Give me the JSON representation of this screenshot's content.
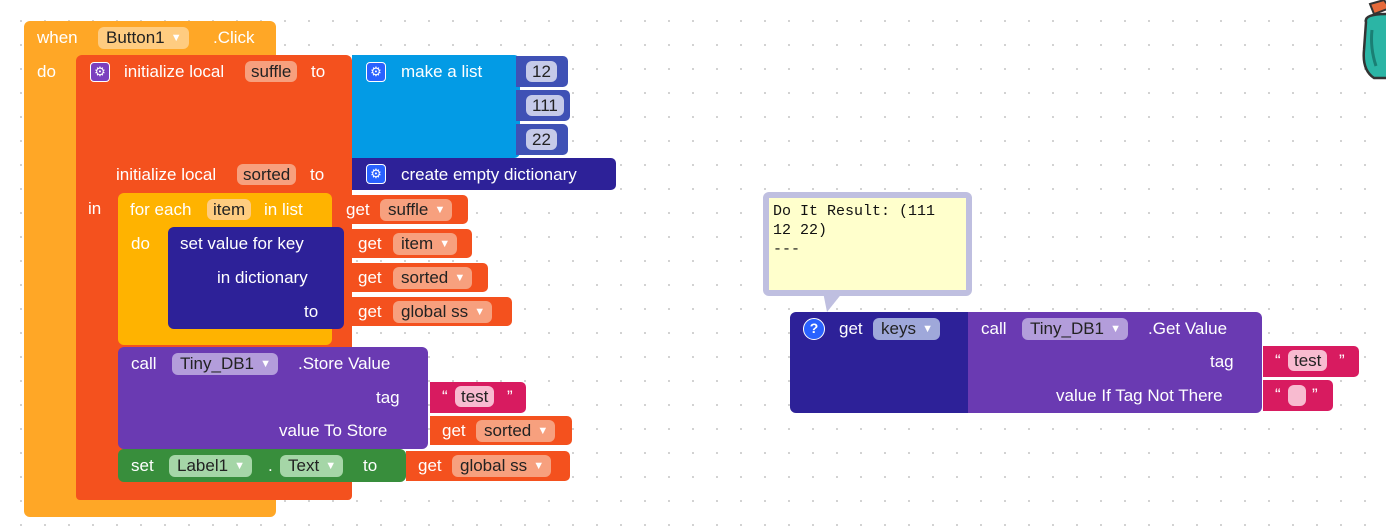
{
  "event": {
    "when": "when",
    "component": "Button1",
    "event_name": ".Click",
    "do": "do"
  },
  "init_suffle": {
    "label": "initialize local",
    "var": "suffle",
    "to": "to"
  },
  "make_list": {
    "label": "make a list",
    "items": [
      "12",
      "111",
      "22"
    ]
  },
  "init_sorted": {
    "label": "initialize local",
    "var": "sorted",
    "to": "to"
  },
  "dict_block": {
    "label": "create empty dictionary"
  },
  "in_label": "in",
  "for_each": {
    "label1": "for each",
    "var": "item",
    "label2": "in list",
    "do": "do"
  },
  "get_suffle": {
    "get": "get",
    "var": "suffle"
  },
  "set_value": {
    "label": "set value for key",
    "in_dict": "in dictionary",
    "to": "to"
  },
  "get_item": {
    "get": "get",
    "var": "item"
  },
  "get_sorted1": {
    "get": "get",
    "var": "sorted"
  },
  "get_global1": {
    "get": "get",
    "var": "global ss"
  },
  "store": {
    "call": "call",
    "component": "Tiny_DB1",
    "method": ".Store Value",
    "tag": "tag",
    "value": "value To Store"
  },
  "str_test1": {
    "open": "“",
    "text": "test",
    "close": "”"
  },
  "get_sorted2": {
    "get": "get",
    "var": "sorted"
  },
  "set_label": {
    "set": "set",
    "component": "Label1",
    "dot": ".",
    "prop": "Text",
    "to": "to"
  },
  "get_global2": {
    "get": "get",
    "var": "global ss"
  },
  "popup": {
    "text": "Do It Result: (111\n12 22)\n---"
  },
  "get_keys": {
    "get": "get",
    "var": "keys",
    "help": "?"
  },
  "get_value": {
    "call": "call",
    "component": "Tiny_DB1",
    "method": ".Get Value",
    "tag": "tag",
    "fallback": "value If Tag Not There"
  },
  "str_test2": {
    "open": "“",
    "text": "test",
    "close": "”"
  },
  "str_empty": {
    "open": "“",
    "text": "",
    "close": "”"
  },
  "arrow": "▼",
  "gear": "⚙",
  "colors": {
    "control": "#ffa726",
    "variable": "#f4511e",
    "list": "#039be5",
    "dictionary": "#2d2198",
    "math": "#3f51b5",
    "tinydb": "#6a3ab2",
    "text": "#d81b60",
    "label": "#388e3c"
  }
}
